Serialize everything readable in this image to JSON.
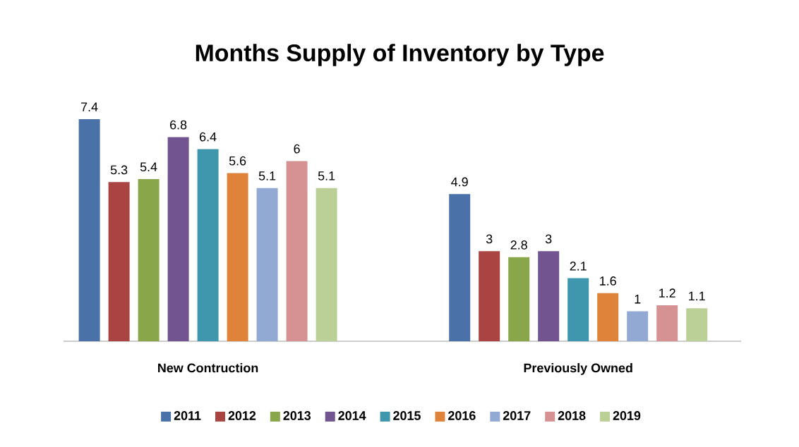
{
  "chart_data": {
    "type": "bar",
    "title": "Months Supply of Inventory by Type",
    "categories": [
      "New Contruction",
      "Previously Owned"
    ],
    "series": [
      {
        "name": "2011",
        "color": "#4a71a8",
        "values": [
          7.4,
          4.9
        ]
      },
      {
        "name": "2012",
        "color": "#a94442",
        "values": [
          5.3,
          3
        ]
      },
      {
        "name": "2013",
        "color": "#89a64a",
        "values": [
          5.4,
          2.8
        ]
      },
      {
        "name": "2014",
        "color": "#715490",
        "values": [
          6.8,
          3
        ]
      },
      {
        "name": "2015",
        "color": "#3f97ad",
        "values": [
          6.4,
          2.1
        ]
      },
      {
        "name": "2016",
        "color": "#de8339",
        "values": [
          5.6,
          1.6
        ]
      },
      {
        "name": "2017",
        "color": "#92a9d3",
        "values": [
          5.1,
          1
        ]
      },
      {
        "name": "2018",
        "color": "#d69292",
        "values": [
          6,
          1.2
        ]
      },
      {
        "name": "2019",
        "color": "#bad097",
        "values": [
          5.1,
          1.1
        ]
      }
    ],
    "tick_labels": "x",
    "data_labels": true,
    "legend": "bottom"
  }
}
